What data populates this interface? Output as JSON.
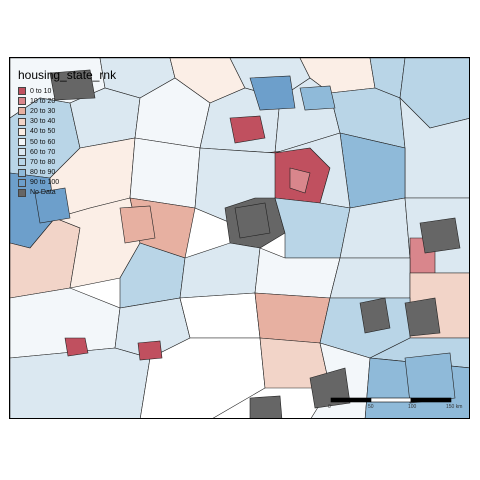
{
  "legend": {
    "title": "housing_state_rnk",
    "items": [
      {
        "label": "0 to 10",
        "color": "#c0505f"
      },
      {
        "label": "10 to 20",
        "color": "#d9868c"
      },
      {
        "label": "20 to 30",
        "color": "#e7b0a1"
      },
      {
        "label": "30 to 40",
        "color": "#f2d4c8"
      },
      {
        "label": "40 to 50",
        "color": "#fbeee6"
      },
      {
        "label": "50 to 60",
        "color": "#f3f7fa"
      },
      {
        "label": "60 to 70",
        "color": "#dbe8f1"
      },
      {
        "label": "70 to 80",
        "color": "#b9d5e7"
      },
      {
        "label": "80 to 90",
        "color": "#8fbad9"
      },
      {
        "label": "90 to 100",
        "color": "#6d9fcb"
      },
      {
        "label": "No Data",
        "color": "#666666"
      }
    ]
  },
  "scalebar": {
    "ticks": [
      "0",
      "50",
      "100",
      "150 km"
    ]
  }
}
